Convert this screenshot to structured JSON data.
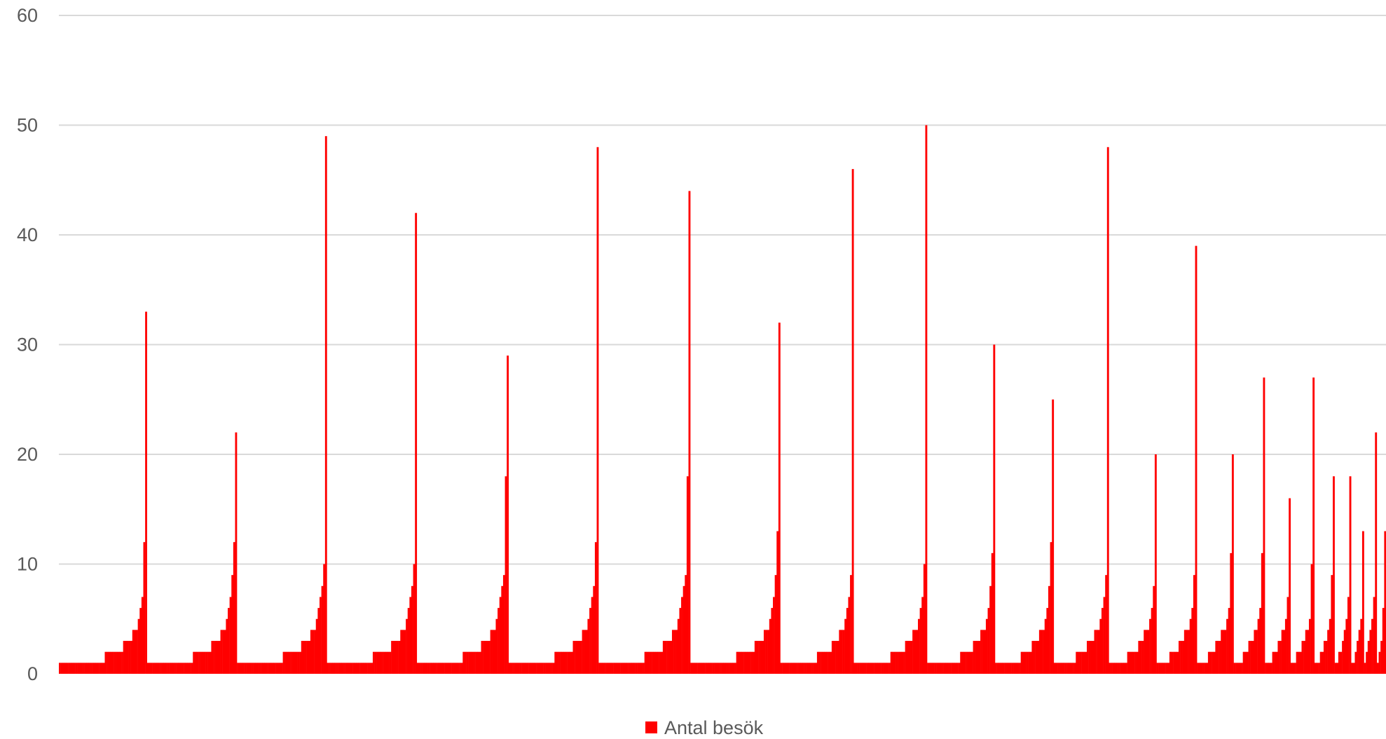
{
  "chart_data": {
    "type": "bar",
    "title": "",
    "xlabel": "",
    "ylabel": "",
    "ylim": [
      0,
      60
    ],
    "yticks": [
      0,
      10,
      20,
      30,
      40,
      50,
      60
    ],
    "grid": true,
    "legend_position": "bottom",
    "colors": {
      "bar": "#ff0000",
      "grid": "#d9d9d9",
      "text": "#595959"
    },
    "series": [
      {
        "name": "Antal besök",
        "groups": [
          {
            "ones": 25,
            "twos": 10,
            "threes": 5,
            "fours": 3,
            "tail": [
              5,
              6,
              7,
              12,
              33
            ]
          },
          {
            "ones": 25,
            "twos": 10,
            "threes": 5,
            "fours": 3,
            "tail": [
              5,
              6,
              7,
              9,
              12,
              22
            ]
          },
          {
            "ones": 25,
            "twos": 10,
            "threes": 5,
            "fours": 3,
            "tail": [
              5,
              6,
              7,
              8,
              10,
              49
            ]
          },
          {
            "ones": 25,
            "twos": 10,
            "threes": 5,
            "fours": 3,
            "tail": [
              5,
              6,
              7,
              8,
              10,
              42
            ]
          },
          {
            "ones": 25,
            "twos": 10,
            "threes": 5,
            "fours": 3,
            "tail": [
              5,
              6,
              7,
              8,
              9,
              18,
              29
            ]
          },
          {
            "ones": 25,
            "twos": 10,
            "threes": 5,
            "fours": 3,
            "tail": [
              5,
              6,
              7,
              8,
              12,
              48
            ]
          },
          {
            "ones": 25,
            "twos": 10,
            "threes": 5,
            "fours": 3,
            "tail": [
              5,
              6,
              7,
              8,
              9,
              18,
              44
            ]
          },
          {
            "ones": 25,
            "twos": 10,
            "threes": 5,
            "fours": 3,
            "tail": [
              5,
              6,
              7,
              9,
              13,
              32
            ]
          },
          {
            "ones": 20,
            "twos": 8,
            "threes": 4,
            "fours": 3,
            "tail": [
              5,
              6,
              7,
              9,
              46
            ]
          },
          {
            "ones": 20,
            "twos": 8,
            "threes": 4,
            "fours": 3,
            "tail": [
              5,
              6,
              7,
              10,
              50
            ]
          },
          {
            "ones": 18,
            "twos": 7,
            "threes": 4,
            "fours": 3,
            "tail": [
              5,
              6,
              8,
              11,
              30
            ]
          },
          {
            "ones": 14,
            "twos": 6,
            "threes": 4,
            "fours": 3,
            "tail": [
              5,
              6,
              8,
              12,
              25
            ]
          },
          {
            "ones": 12,
            "twos": 6,
            "threes": 4,
            "fours": 3,
            "tail": [
              5,
              6,
              7,
              9,
              48
            ]
          },
          {
            "ones": 10,
            "twos": 6,
            "threes": 3,
            "fours": 3,
            "tail": [
              5,
              6,
              8,
              20
            ]
          },
          {
            "ones": 7,
            "twos": 5,
            "threes": 3,
            "fours": 3,
            "tail": [
              5,
              6,
              9,
              39
            ]
          },
          {
            "ones": 6,
            "twos": 4,
            "threes": 3,
            "fours": 3,
            "tail": [
              5,
              6,
              11,
              20
            ]
          },
          {
            "ones": 5,
            "twos": 3,
            "threes": 3,
            "fours": 2,
            "tail": [
              5,
              6,
              11,
              27
            ]
          },
          {
            "ones": 4,
            "twos": 3,
            "threes": 2,
            "fours": 2,
            "tail": [
              5,
              7,
              16
            ]
          },
          {
            "ones": 3,
            "twos": 3,
            "threes": 2,
            "fours": 2,
            "tail": [
              5,
              10,
              27
            ]
          },
          {
            "ones": 3,
            "twos": 2,
            "threes": 2,
            "fours": 1,
            "tail": [
              5,
              9,
              18
            ]
          },
          {
            "ones": 2,
            "twos": 2,
            "threes": 1,
            "fours": 1,
            "tail": [
              5,
              7,
              18
            ]
          },
          {
            "ones": 2,
            "twos": 1,
            "threes": 1,
            "fours": 1,
            "tail": [
              5,
              13
            ]
          },
          {
            "ones": 1,
            "twos": 1,
            "threes": 1,
            "fours": 1,
            "tail": [
              5,
              7,
              22
            ]
          },
          {
            "ones": 1,
            "twos": 1,
            "threes": 1,
            "fours": 0,
            "tail": [
              6,
              13
            ]
          }
        ]
      }
    ],
    "legend": [
      {
        "label": "Antal besök",
        "color": "#ff0000"
      }
    ]
  }
}
